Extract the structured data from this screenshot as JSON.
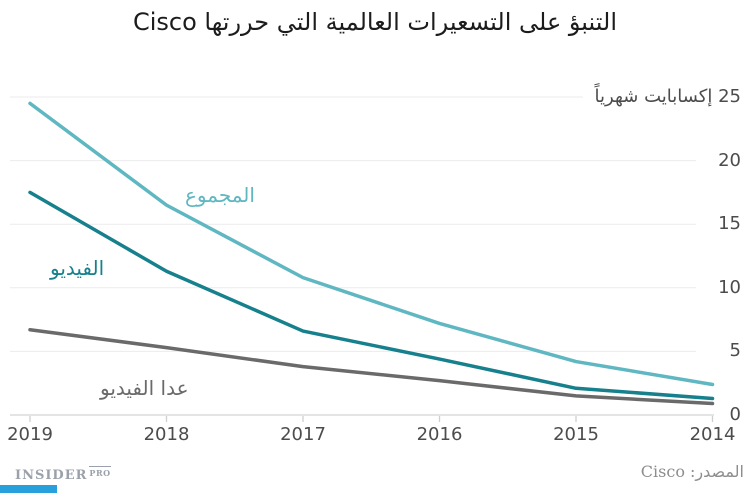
{
  "title": "التنبؤ على التسعيرات العالمية التي حررتها Cisco",
  "chart_data": {
    "type": "line",
    "rtl": true,
    "categories": [
      "2019",
      "2018",
      "2017",
      "2016",
      "2015",
      "2014"
    ],
    "series": [
      {
        "name": "المجموع",
        "color": "#5fb7c1",
        "values": [
          24.5,
          16.5,
          10.8,
          7.2,
          4.2,
          2.4
        ]
      },
      {
        "name": "الفيديو",
        "color": "#17808d",
        "values": [
          17.5,
          11.3,
          6.6,
          4.4,
          2.1,
          1.3
        ]
      },
      {
        "name": "عدا الفيديو",
        "color": "#6a6a6a",
        "values": [
          6.7,
          5.3,
          3.8,
          2.7,
          1.5,
          0.9
        ]
      }
    ],
    "unit_label": "إكسابايت شهرياً",
    "y_axis_top_label": "25 إكسابايت شهرياً",
    "y_ticks": [
      0,
      5,
      10,
      15,
      20,
      25
    ],
    "ylim": [
      0,
      25
    ],
    "grid": true,
    "legend_position": "inline"
  },
  "footer": {
    "logo_main": "INSIDER",
    "logo_sub": "PRO",
    "source_label": "المصدر: Cisco"
  },
  "colors": {
    "grid": "#ebebeb",
    "grid_zero": "#d4d4d4",
    "axis_tick": "#cfcfcf",
    "tick_text": "#4c4c4c",
    "accent_bar": "#28a0dc"
  }
}
